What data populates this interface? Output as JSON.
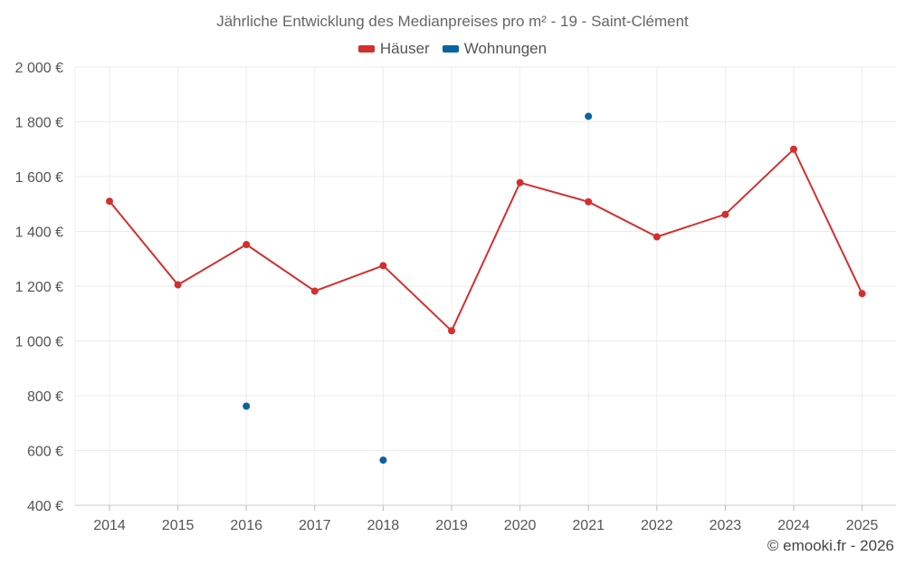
{
  "chart_data": {
    "type": "line",
    "title": "Jährliche Entwicklung des Medianpreises pro m² - 19 - Saint-Clément",
    "xlabel": "",
    "ylabel": "",
    "categories": [
      "2014",
      "2015",
      "2016",
      "2017",
      "2018",
      "2019",
      "2020",
      "2021",
      "2022",
      "2023",
      "2024",
      "2025"
    ],
    "ylim": [
      400,
      2000
    ],
    "yticks": [
      400,
      600,
      800,
      1000,
      1200,
      1400,
      1600,
      1800,
      2000
    ],
    "ytick_labels": [
      "400 €",
      "600 €",
      "800 €",
      "1 000 €",
      "1 200 €",
      "1 400 €",
      "1 600 €",
      "1 800 €",
      "2 000 €"
    ],
    "grid": true,
    "legend_position": "top-center",
    "series": [
      {
        "name": "Häuser",
        "color": "#d32f2f",
        "style": "line-markers",
        "values": [
          1510,
          1205,
          1352,
          1182,
          1275,
          1037,
          1578,
          1508,
          1380,
          1462,
          1700,
          1173
        ]
      },
      {
        "name": "Wohnungen",
        "color": "#0b63a0",
        "style": "markers",
        "values": [
          null,
          null,
          762,
          null,
          565,
          null,
          null,
          1820,
          null,
          null,
          null,
          null
        ]
      }
    ]
  },
  "footer": "© emooki.fr - 2026"
}
